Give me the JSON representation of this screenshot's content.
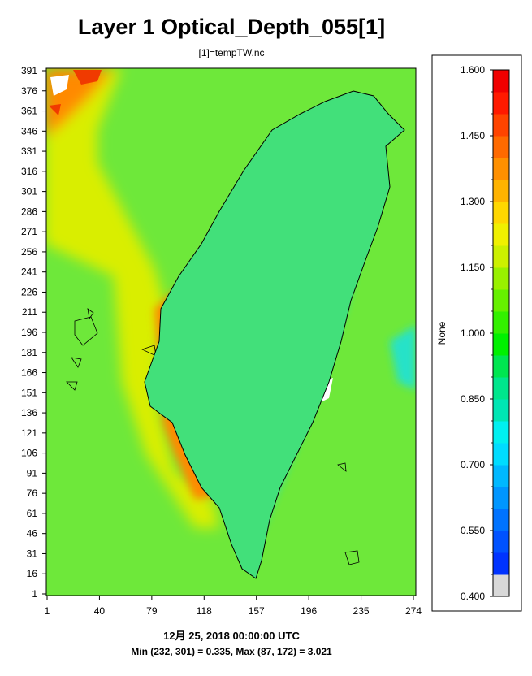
{
  "title": "Layer 1 Optical_Depth_055[1]",
  "subtitle": "[1]=tempTW.nc",
  "footer": {
    "datetime": "12月 25, 2018 00:00:00 UTC",
    "minmax": "Min (232, 301) = 0.335, Max (87, 172) = 3.021"
  },
  "axes": {
    "x_ticks": [
      "1",
      "40",
      "79",
      "118",
      "157",
      "196",
      "235",
      "274"
    ],
    "y_ticks": [
      "391",
      "376",
      "361",
      "346",
      "331",
      "316",
      "301",
      "286",
      "271",
      "256",
      "241",
      "226",
      "211",
      "196",
      "181",
      "166",
      "151",
      "136",
      "121",
      "106",
      "91",
      "76",
      "61",
      "46",
      "31",
      "16",
      "1"
    ]
  },
  "colorbar": {
    "label": "None",
    "tick_labels": [
      "1.600",
      "1.450",
      "1.300",
      "1.150",
      "1.000",
      "0.850",
      "0.700",
      "0.550",
      "0.400"
    ],
    "colors": [
      "#d8d8d8",
      "#0033ff",
      "#0052ff",
      "#0073ff",
      "#0096ff",
      "#00b8ff",
      "#00dcff",
      "#00f0f0",
      "#00e6b4",
      "#00e68c",
      "#00e650",
      "#00f000",
      "#33f000",
      "#66f000",
      "#99f000",
      "#ccf000",
      "#f0f000",
      "#ffd700",
      "#ffb300",
      "#ff9000",
      "#ff6a00",
      "#ff4400",
      "#ff1a00",
      "#f00000"
    ]
  },
  "map_colors": {
    "sea": "#6ee83a",
    "land_mid": "#42e07a",
    "mountain": "#26e2c8",
    "high": "#1aa6ff",
    "peak": "#1f5fff",
    "haze_yellow": "#d9ee00",
    "haze_orange": "#ff8a00",
    "haze_red": "#f03a00",
    "cloud": "#ffffff",
    "border": "#000000"
  }
}
